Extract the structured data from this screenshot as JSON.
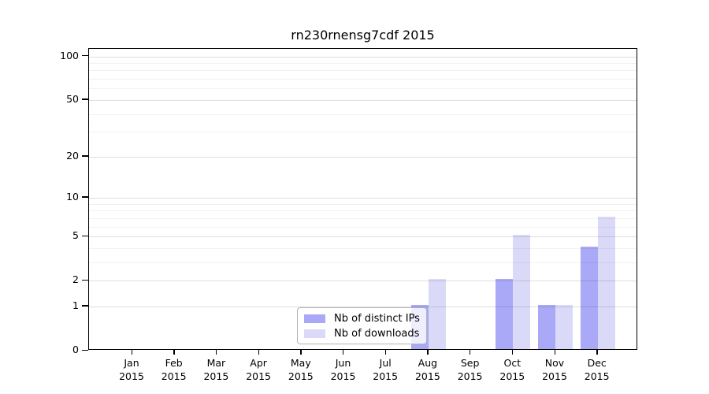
{
  "title": "rn230rnensg7cdf 2015",
  "colors": {
    "distinct_ips_bar": "#a9a9f7",
    "downloads_bar": "#dadaf8",
    "grid_major": "rgba(0,0,0,0.13)",
    "grid_minor": "rgba(0,0,0,0.055)",
    "axis": "#000000",
    "legend_border": "#b4b4b4"
  },
  "chart_data": {
    "type": "bar",
    "title": "rn230rnensg7cdf 2015",
    "categories": [
      "Jan",
      "Feb",
      "Mar",
      "Apr",
      "May",
      "Jun",
      "Jul",
      "Aug",
      "Sep",
      "Oct",
      "Nov",
      "Dec"
    ],
    "year": "2015",
    "series": [
      {
        "name": "Nb of distinct IPs",
        "color": "#a9a9f7",
        "values": [
          0,
          0,
          0,
          0,
          0,
          0,
          0,
          1,
          0,
          2,
          1,
          4
        ]
      },
      {
        "name": "Nb of downloads",
        "color": "#dadaf8",
        "values": [
          0,
          0,
          0,
          0,
          0,
          0,
          0,
          2,
          0,
          5,
          1,
          7
        ]
      }
    ],
    "xlabel": "",
    "ylabel": "",
    "yscale": "log1p",
    "yticks": [
      0,
      1,
      2,
      5,
      10,
      20,
      50,
      100
    ],
    "yticks_minor": [
      3,
      4,
      6,
      7,
      8,
      9,
      30,
      40,
      60,
      70,
      80,
      90
    ],
    "ylim": [
      0,
      113
    ],
    "grid": true,
    "legend_position": "lower center-left"
  }
}
